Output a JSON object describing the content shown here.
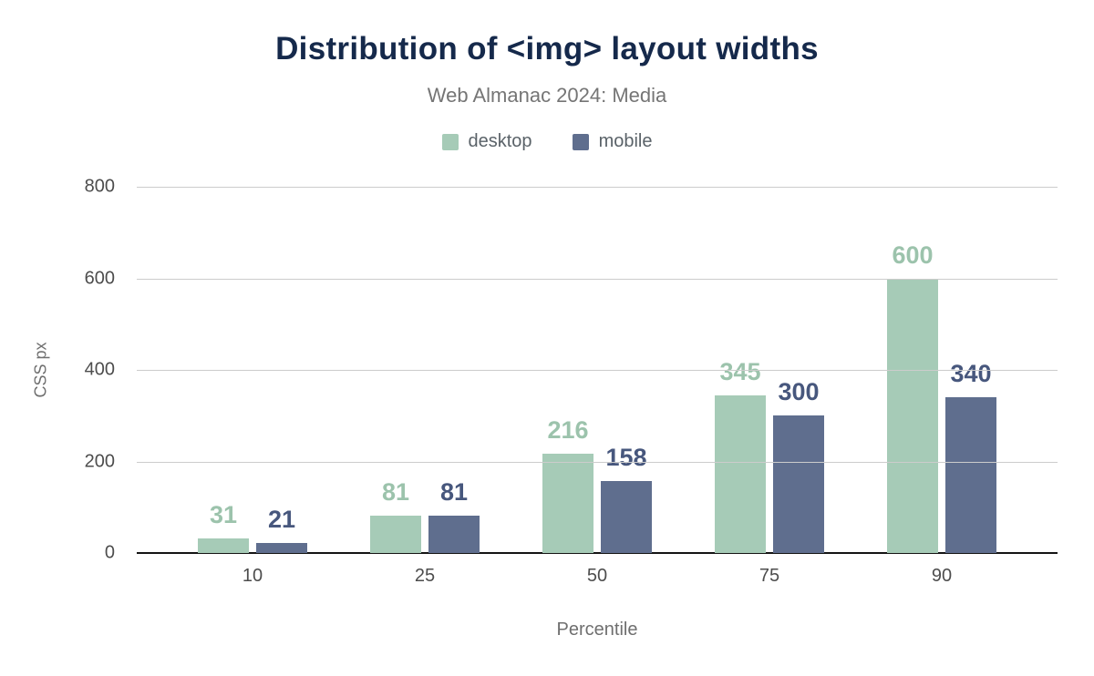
{
  "chart": {
    "title": "Distribution of <img> layout widths",
    "subtitle": "Web Almanac 2024: Media",
    "ylabel": "CSS px",
    "xlabel": "Percentile"
  },
  "chart_data": {
    "type": "bar",
    "title": "Distribution of <img> layout widths",
    "subtitle": "Web Almanac 2024: Media",
    "categories": [
      "10",
      "25",
      "50",
      "75",
      "90"
    ],
    "series": [
      {
        "name": "desktop",
        "color": "#a6cbb7",
        "label_color": "#9cc3ac",
        "values": [
          31,
          81,
          216,
          345,
          600
        ]
      },
      {
        "name": "mobile",
        "color": "#5f6e8e",
        "label_color": "#47577d",
        "values": [
          21,
          81,
          158,
          300,
          340
        ]
      }
    ],
    "xlabel": "Percentile",
    "ylabel": "CSS px",
    "ylim": [
      0,
      800
    ],
    "yticks": [
      0,
      200,
      400,
      600,
      800
    ],
    "grid": true,
    "legend_position": "top",
    "colors": {
      "title": "#15294b",
      "subtitle": "#757575",
      "grid": "#cccccc",
      "axis": "#141414",
      "tick_labels": "#4d4d4d"
    }
  }
}
